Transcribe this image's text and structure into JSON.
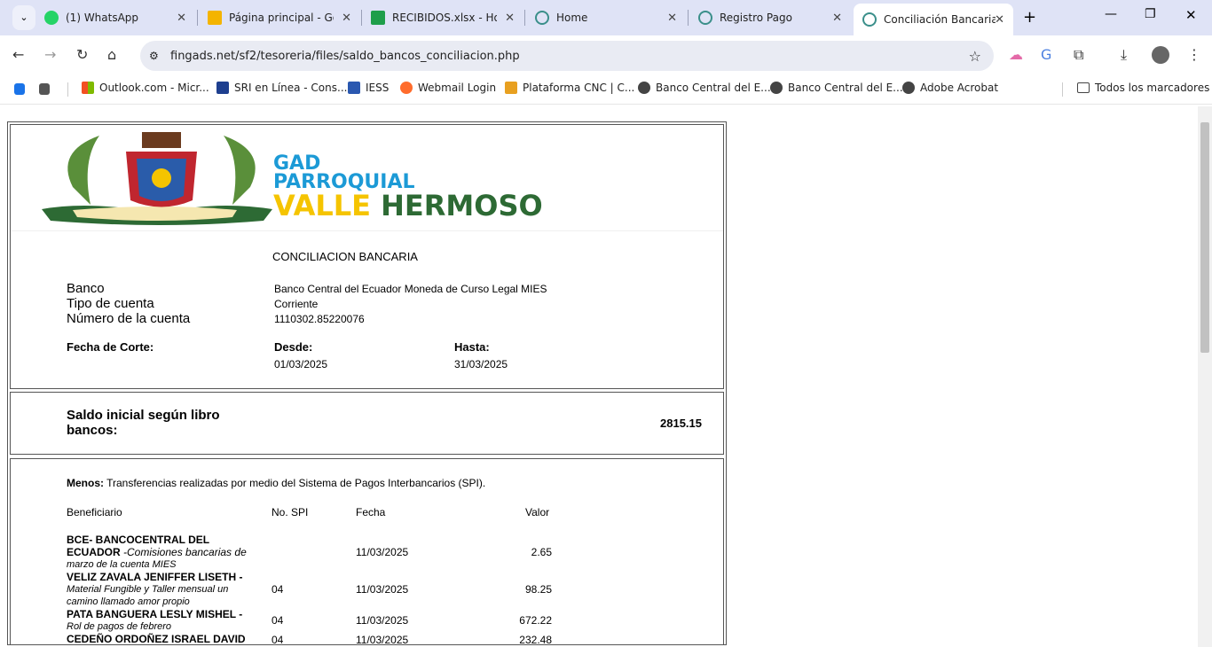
{
  "browser": {
    "tabs": [
      {
        "title": "(1) WhatsApp",
        "icon": "whatsapp-icon",
        "color": "#25d366"
      },
      {
        "title": "Página principal - Go",
        "icon": "google-drive-icon",
        "color": "#f4b400"
      },
      {
        "title": "RECIBIDOS.xlsx - Hoja",
        "icon": "sheets-icon",
        "color": "#1e9e4a"
      },
      {
        "title": "Home",
        "icon": "gear-icon",
        "color": "#3a8f8a"
      },
      {
        "title": "Registro Pago",
        "icon": "gear-icon",
        "color": "#3a8f8a"
      },
      {
        "title": "Conciliación Bancaria",
        "icon": "gear-icon",
        "color": "#3a8f8a"
      }
    ],
    "url": "fingads.net/sf2/tesoreria/files/saldo_bancos_conciliacion.php",
    "bookmarks": [
      {
        "label": "Outlook.com - Micr...",
        "color": "#f25022"
      },
      {
        "label": "SRI en Línea - Cons...",
        "color": "#1e3f8f"
      },
      {
        "label": "IESS",
        "color": "#2a58b0"
      },
      {
        "label": "Webmail Login",
        "color": "#ff6c2c"
      },
      {
        "label": "Plataforma CNC | C...",
        "color": "#e8a020"
      },
      {
        "label": "Banco Central del E...",
        "color": "#444"
      },
      {
        "label": "Banco Central del E...",
        "color": "#444"
      },
      {
        "label": "Adobe Acrobat",
        "color": "#444"
      }
    ],
    "all_bookmarks": "Todos los marcadores"
  },
  "logo": {
    "line1": "GAD",
    "line2": "PARROQUIAL",
    "line3a": "VALLE",
    "line3b": "HERMOSO",
    "ribbon": "VALLE HERMOSO TURÍSTICO Y PRODUCTIVO",
    "blue": "#1c9ad6",
    "yellow": "#f5c400",
    "green": "#2d6a34"
  },
  "report": {
    "title": "CONCILIACION BANCARIA",
    "banco_label": "Banco",
    "banco": "Banco Central del Ecuador Moneda de Curso Legal MIES",
    "tipo_label": "Tipo de cuenta",
    "tipo": "Corriente",
    "numero_label": "Número de la cuenta",
    "numero": "1110302.85220076",
    "fecha_corte_label": "Fecha de Corte:",
    "desde_label": "Desde:",
    "desde": "01/03/2025",
    "hasta_label": "Hasta:",
    "hasta": "31/03/2025",
    "saldo_label_1": "Saldo inicial según libro",
    "saldo_label_2": "bancos:",
    "saldo": "2815.15",
    "menos_label": "Menos:",
    "menos_text": " Transferencias realizadas por medio del Sistema de Pagos Interbancarios (SPI).",
    "columns": [
      "Beneficiario",
      "No. SPI",
      "Fecha",
      "Valor"
    ],
    "rows": [
      {
        "name1": "BCE- BANCOCENTRAL DEL",
        "name2": "ECUADOR",
        "desc1": " -Comisiones bancarias de",
        "desc2": "marzo de la cuenta MIES",
        "spi": "",
        "fecha": "11/03/2025",
        "valor": "2.65"
      },
      {
        "name1": "VELIZ ZAVALA JENIFFER LISETH -",
        "desc1": "Material Fungible y Taller mensual un",
        "desc2": "camino llamado amor propio",
        "spi": "04",
        "fecha": "11/03/2025",
        "valor": "98.25"
      },
      {
        "name1": "PATA BANGUERA LESLY MISHEL -",
        "desc1": "Rol de pagos de febrero",
        "spi": "04",
        "fecha": "11/03/2025",
        "valor": "672.22"
      },
      {
        "name1": "CEDEÑO ORDOÑEZ ISRAEL DAVID",
        "spi": "04",
        "fecha": "11/03/2025",
        "valor": "232.48"
      }
    ]
  }
}
